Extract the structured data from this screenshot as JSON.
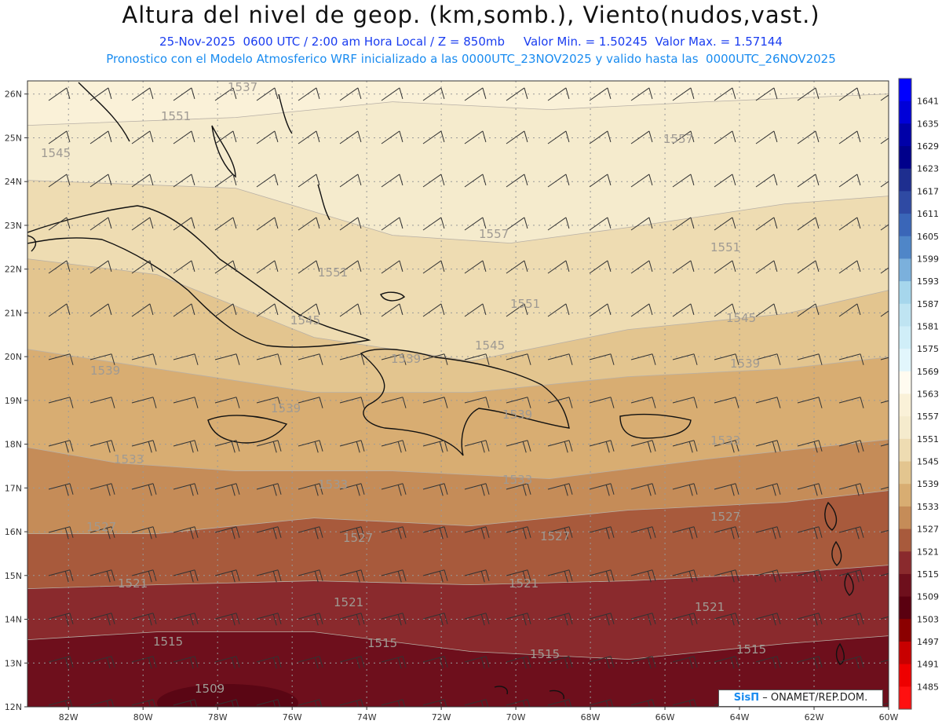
{
  "header": {
    "title": "Altura del nivel de geop. (km,somb.), Viento(nudos,vast.)",
    "subtitle1": "25-Nov-2025  0600 UTC / 2:00 am Hora Local / Z = 850mb     Valor Min. = 1.50245  Valor Max. = 1.57144",
    "subtitle2": "Pronostico con el Modelo Atmosferico WRF inicializado a las 0000UTC_23NOV2025 y valido hasta las  0000UTC_26NOV2025"
  },
  "map": {
    "lat_labels": [
      "26N",
      "25N",
      "24N",
      "23N",
      "22N",
      "21N",
      "20N",
      "19N",
      "18N",
      "17N",
      "16N",
      "15N",
      "14N",
      "13N",
      "12N"
    ],
    "lon_labels": [
      "82W",
      "80W",
      "78W",
      "76W",
      "74W",
      "72W",
      "70W",
      "68W",
      "66W",
      "64W",
      "62W",
      "60W"
    ],
    "bands": [
      {
        "label": "1557",
        "color": "#faf1d8"
      },
      {
        "label": "1551",
        "color": "#f5ebcd"
      },
      {
        "label": "1545",
        "color": "#eedcb2"
      },
      {
        "label": "1539",
        "color": "#e3c58f"
      },
      {
        "label": "1533",
        "color": "#d8ad72"
      },
      {
        "label": "1527",
        "color": "#c58c58"
      },
      {
        "label": "1521",
        "color": "#a85a3c"
      },
      {
        "label": "1515",
        "color": "#8a2a2d"
      },
      {
        "label": "1509",
        "color": "#6e0f1c"
      }
    ],
    "contour_labels": [
      {
        "text": "1537"
      },
      {
        "text": "1551"
      },
      {
        "text": "1545"
      },
      {
        "text": "1557"
      },
      {
        "text": "1557"
      },
      {
        "text": "1551"
      },
      {
        "text": "1551"
      },
      {
        "text": "1551"
      },
      {
        "text": "1545"
      },
      {
        "text": "1545"
      },
      {
        "text": "1545"
      },
      {
        "text": "1539"
      },
      {
        "text": "1539"
      },
      {
        "text": "1539"
      },
      {
        "text": "1539"
      },
      {
        "text": "1539"
      },
      {
        "text": "1533"
      },
      {
        "text": "1533"
      },
      {
        "text": "1533"
      },
      {
        "text": "1533"
      },
      {
        "text": "1527"
      },
      {
        "text": "1527"
      },
      {
        "text": "1527"
      },
      {
        "text": "1527"
      },
      {
        "text": "1521"
      },
      {
        "text": "1521"
      },
      {
        "text": "1521"
      },
      {
        "text": "1521"
      },
      {
        "text": "1515"
      },
      {
        "text": "1515"
      },
      {
        "text": "1515"
      },
      {
        "text": "1515"
      },
      {
        "text": "1509"
      }
    ]
  },
  "colorbar": {
    "labels": [
      "1641",
      "1635",
      "1629",
      "1623",
      "1617",
      "1611",
      "1605",
      "1599",
      "1593",
      "1587",
      "1581",
      "1575",
      "1569",
      "1563",
      "1557",
      "1551",
      "1545",
      "1539",
      "1533",
      "1527",
      "1521",
      "1515",
      "1509",
      "1503",
      "1497",
      "1491",
      "1485"
    ],
    "colors": [
      "#0000ff",
      "#0000d8",
      "#0000a8",
      "#00008b",
      "#1e2e8f",
      "#2f4aa3",
      "#3a66b8",
      "#4f86c8",
      "#7bb0dc",
      "#a6d6ec",
      "#bfe4f2",
      "#d0eef8",
      "#e2f6fc",
      "#fffbf0",
      "#faf1d8",
      "#f5ebcd",
      "#eedcb2",
      "#e3c58f",
      "#d8ad72",
      "#c58c58",
      "#a85a3c",
      "#8a2a2d",
      "#6e0f1c",
      "#5a0010",
      "#8b0000",
      "#c80000",
      "#ee0000",
      "#ff1010"
    ]
  },
  "credit": {
    "brand": "SisΠ",
    "text": "– ONAMET/REP.DOM."
  }
}
